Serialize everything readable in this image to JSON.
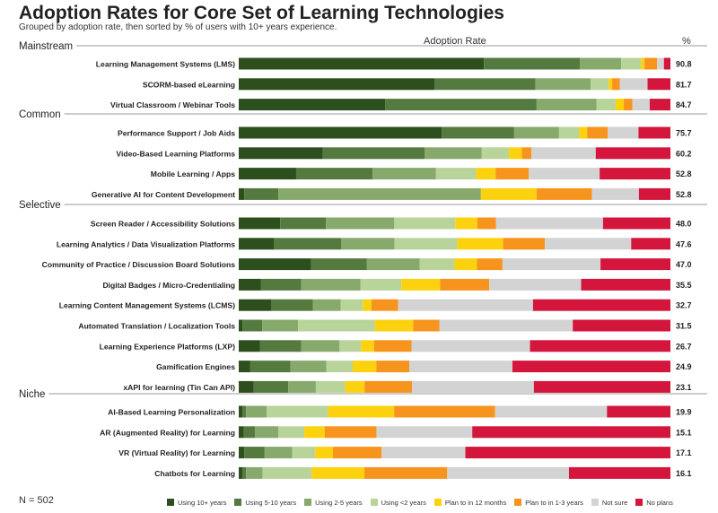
{
  "title": "Adoption Rates for Core Set of Learning Technologies",
  "subtitle": "Grouped by adoption rate, then sorted by % of users with 10+ years experience.",
  "header": {
    "adoption_rate": "Adoption Rate",
    "percent": "%"
  },
  "footer": {
    "n_label": "N = 502"
  },
  "colors": {
    "Using 10+ years": "#2d4f1e",
    "Using 5-10 years": "#557a3f",
    "Using 2-5 years": "#87a96b",
    "Using <2 years": "#b8d49a",
    "Plan to in 12 months": "#fcd20f",
    "Plan to in 1-3 years": "#f7941d",
    "Not sure": "#d3d3d3",
    "No plans": "#d4163c"
  },
  "chart_data": {
    "type": "bar",
    "orientation": "horizontal",
    "stacked": true,
    "normalized": true,
    "title": "Adoption Rates for Core Set of Learning Technologies",
    "xlabel": "Adoption Rate",
    "ylabel": "",
    "xlim": [
      0,
      100
    ],
    "legend": [
      "Using 10+ years",
      "Using 5-10 years",
      "Using 2-5 years",
      "Using <2 years",
      "Plan to in 12 months",
      "Plan to in 1-3 years",
      "Not sure",
      "No plans"
    ],
    "groups": [
      {
        "name": "Mainstream",
        "items": [
          {
            "label": "Learning Management Systems (LMS)",
            "adoption": "90.8",
            "segments": [
              56.8,
              22.2,
              9.6,
              4.6,
              0.8,
              2.9,
              1.6,
              1.5
            ]
          },
          {
            "label": "SCORM-based eLearning",
            "adoption": "81.7",
            "segments": [
              45.4,
              23.3,
              12.8,
              4.2,
              0.8,
              1.8,
              6.4,
              5.3
            ]
          },
          {
            "label": "Virtual Classroom / Webinar Tools",
            "adoption": "84.7",
            "segments": [
              33.9,
              35.1,
              13.9,
              4.4,
              1.9,
              2.0,
              4.0,
              4.8
            ]
          }
        ]
      },
      {
        "name": "Common",
        "items": [
          {
            "label": "Performance Support / Job Aids",
            "adoption": "75.7",
            "segments": [
              47.0,
              16.8,
              10.4,
              4.6,
              1.9,
              4.8,
              7.1,
              7.4
            ]
          },
          {
            "label": "Video-Based Learning Platforms",
            "adoption": "60.2",
            "segments": [
              19.5,
              23.6,
              13.2,
              6.3,
              3.0,
              2.2,
              14.9,
              17.3
            ]
          },
          {
            "label": "Mobile Learning / Apps",
            "adoption": "52.8",
            "segments": [
              13.3,
              17.7,
              14.7,
              9.3,
              4.5,
              7.7,
              16.4,
              16.4
            ]
          },
          {
            "label": "Generative AI for Content Development",
            "adoption": "52.8",
            "segments": [
              1.3,
              7.9,
              46.9,
              0.0,
              12.9,
              12.8,
              10.9,
              7.3
            ]
          }
        ]
      },
      {
        "name": "Selective",
        "items": [
          {
            "label": "Screen Reader / Accessibility Solutions",
            "adoption": "48.0",
            "segments": [
              9.6,
              10.6,
              15.8,
              14.1,
              5.1,
              4.3,
              24.8,
              15.6
            ]
          },
          {
            "label": "Learning Analytics / Data Visualization Platforms",
            "adoption": "47.6",
            "segments": [
              8.2,
              15.6,
              12.3,
              14.6,
              10.6,
              9.7,
              20.0,
              9.1
            ]
          },
          {
            "label": "Community of Practice / Discussion Board Solutions",
            "adoption": "47.0",
            "segments": [
              16.8,
              12.9,
              12.2,
              8.1,
              5.2,
              5.9,
              22.7,
              16.2
            ]
          },
          {
            "label": "Digital Badges / Micro-Credentialing",
            "adoption": "35.5",
            "segments": [
              5.1,
              9.4,
              13.7,
              9.5,
              9.0,
              11.4,
              21.3,
              20.7
            ]
          },
          {
            "label": "Learning Content Management Systems (LCMS)",
            "adoption": "32.7",
            "segments": [
              7.5,
              9.7,
              6.5,
              5.1,
              2.0,
              6.2,
              31.3,
              31.9
            ]
          },
          {
            "label": "Automated Translation / Localization Tools",
            "adoption": "31.5",
            "segments": [
              0.9,
              4.9,
              8.8,
              18.9,
              9.4,
              6.4,
              32.8,
              24.0
            ]
          },
          {
            "label": "Learning Experience Platforms (LXP)",
            "adoption": "26.7",
            "segments": [
              4.9,
              9.6,
              8.9,
              5.0,
              3.0,
              8.7,
              27.5,
              32.6
            ]
          },
          {
            "label": "Gamification Engines",
            "adoption": "24.9",
            "segments": [
              2.6,
              9.4,
              8.3,
              6.1,
              5.5,
              7.6,
              23.9,
              36.6
            ]
          },
          {
            "label": "xAPI for learning (Tin Can API)",
            "adoption": "23.1",
            "segments": [
              3.5,
              8.0,
              6.4,
              6.8,
              4.5,
              11.0,
              28.3,
              31.7
            ]
          }
        ]
      },
      {
        "name": "Niche",
        "items": [
          {
            "label": "AI-Based Learning Personalization",
            "adoption": "19.9",
            "segments": [
              0.9,
              0.8,
              4.8,
              14.2,
              15.3,
              23.4,
              25.9,
              14.7
            ]
          },
          {
            "label": "AR (Augmented Reality) for Learning",
            "adoption": "15.1",
            "segments": [
              1.2,
              2.6,
              5.4,
              6.0,
              4.7,
              12.0,
              22.2,
              45.9
            ]
          },
          {
            "label": "VR (Virtual Reality) for Learning",
            "adoption": "17.1",
            "segments": [
              1.3,
              4.7,
              6.4,
              5.3,
              4.1,
              11.3,
              19.4,
              47.5
            ]
          },
          {
            "label": "Chatbots for Learning",
            "adoption": "16.1",
            "segments": [
              0.9,
              0.8,
              3.8,
              11.4,
              12.2,
              19.2,
              28.2,
              23.5
            ]
          }
        ]
      }
    ]
  }
}
